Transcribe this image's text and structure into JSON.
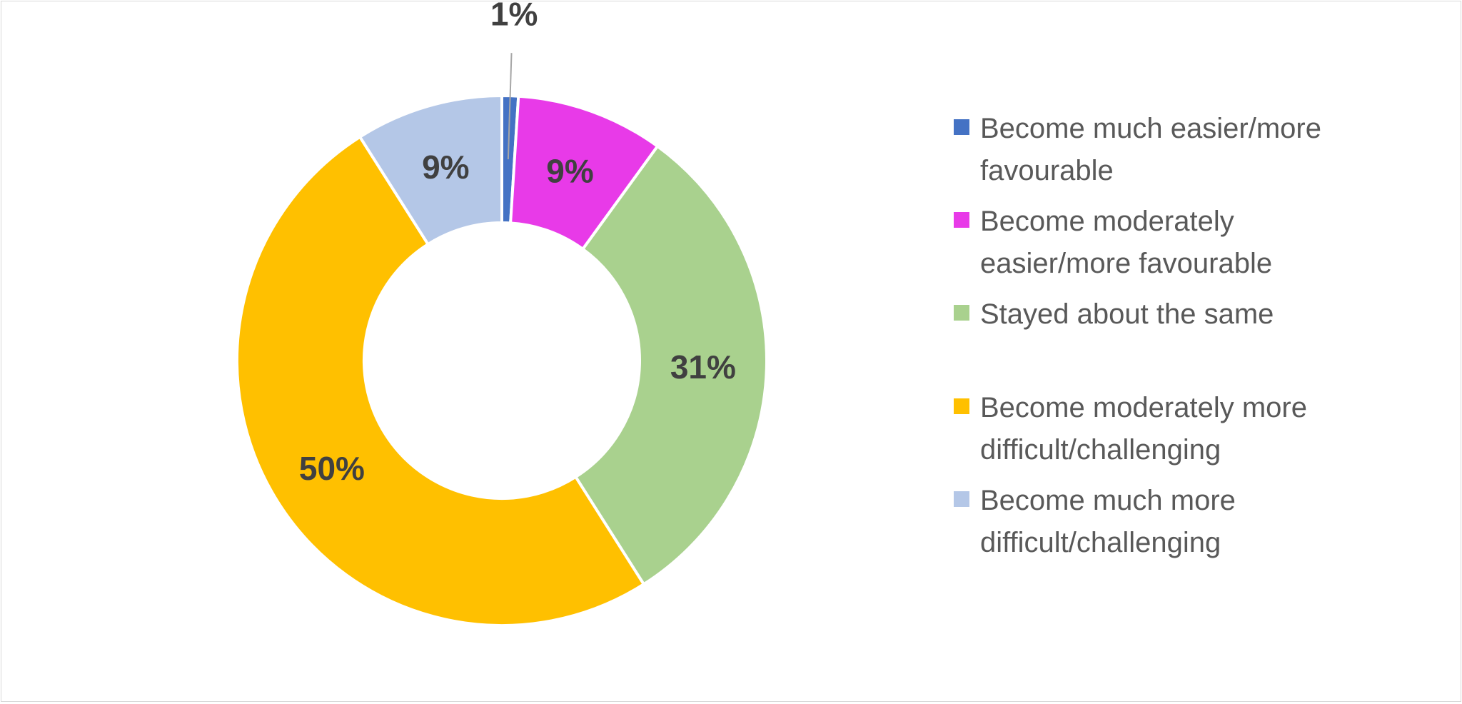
{
  "chart_data": {
    "type": "donut",
    "title": "",
    "series": [
      {
        "values": [
          1,
          9,
          31,
          50,
          9
        ],
        "labels": [
          "1%",
          "9%",
          "31%",
          "50%",
          "9%"
        ]
      }
    ],
    "categories": [
      "Become much easier/more favourable",
      "Become moderately easier/more favourable",
      "Stayed about the same",
      "Become moderately more difficult/challenging",
      "Become much more difficult/challenging"
    ],
    "colors": [
      "#4472c4",
      "#e83ae8",
      "#a9d18e",
      "#ffc000",
      "#b4c7e7"
    ],
    "legend": {
      "position": "right",
      "entries": [
        [
          "Become much easier/more",
          "favourable"
        ],
        [
          "Become moderately",
          "easier/more favourable"
        ],
        [
          "Stayed about the same"
        ],
        [
          "Become moderately more",
          "difficult/challenging"
        ],
        [
          "Become much more",
          "difficult/challenging"
        ]
      ]
    }
  }
}
